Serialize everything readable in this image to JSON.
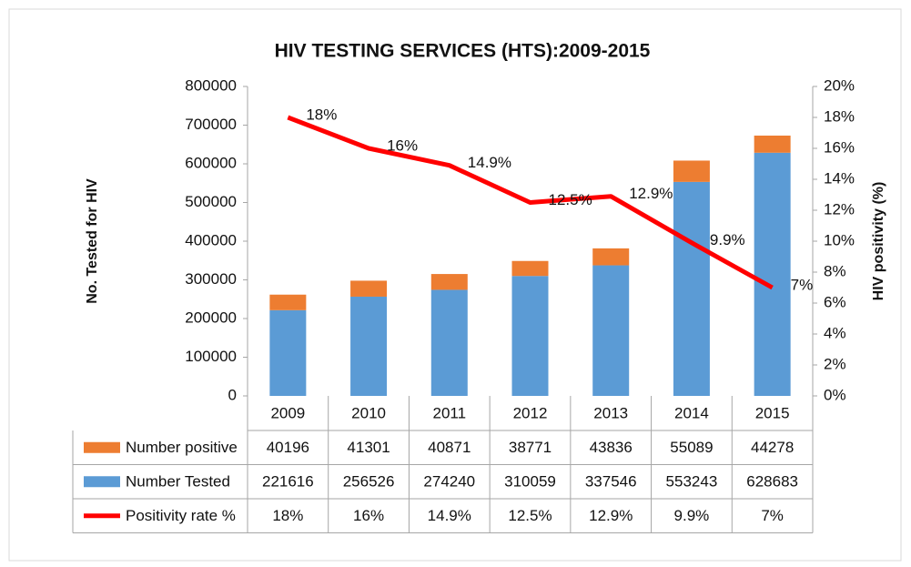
{
  "chart_data": {
    "type": "bar",
    "title": "HIV TESTING SERVICES (HTS):2009-2015",
    "y_label": "No. Tested for HIV",
    "y2_label": "HIV positivity (%)",
    "categories": [
      "2009",
      "2010",
      "2011",
      "2012",
      "2013",
      "2014",
      "2015"
    ],
    "series": [
      {
        "name": "Number positive",
        "type": "bar",
        "color": "#ed7d31",
        "values": [
          40196,
          41301,
          40871,
          38771,
          43836,
          55089,
          44278
        ]
      },
      {
        "name": "Number Tested",
        "type": "bar",
        "color": "#5b9bd5",
        "values": [
          221616,
          256526,
          274240,
          310059,
          337546,
          553243,
          628683
        ]
      },
      {
        "name": "Positivity rate %",
        "type": "line",
        "axis": "y2",
        "color": "#ff0000",
        "values": [
          18,
          16,
          14.9,
          12.5,
          12.9,
          9.9,
          7
        ],
        "value_labels": [
          "18%",
          "16%",
          "14.9%",
          "12.5%",
          "12.9%",
          "9.9%",
          "7%"
        ]
      }
    ],
    "ylim": [
      0,
      800000
    ],
    "yticks": [
      0,
      100000,
      200000,
      300000,
      400000,
      500000,
      600000,
      700000,
      800000
    ],
    "y2lim": [
      0,
      20
    ],
    "y2ticks": [
      {
        "value": 0,
        "label": "0%"
      },
      {
        "value": 2,
        "label": "2%"
      },
      {
        "value": 4,
        "label": "4%"
      },
      {
        "value": 6,
        "label": "6%"
      },
      {
        "value": 8,
        "label": "8%"
      },
      {
        "value": 10,
        "label": "10%"
      },
      {
        "value": 12,
        "label": "12%"
      },
      {
        "value": 14,
        "label": "14%"
      },
      {
        "value": 16,
        "label": "16%"
      },
      {
        "value": 18,
        "label": "18%"
      },
      {
        "value": 20,
        "label": "20%"
      }
    ],
    "data_table": true
  }
}
